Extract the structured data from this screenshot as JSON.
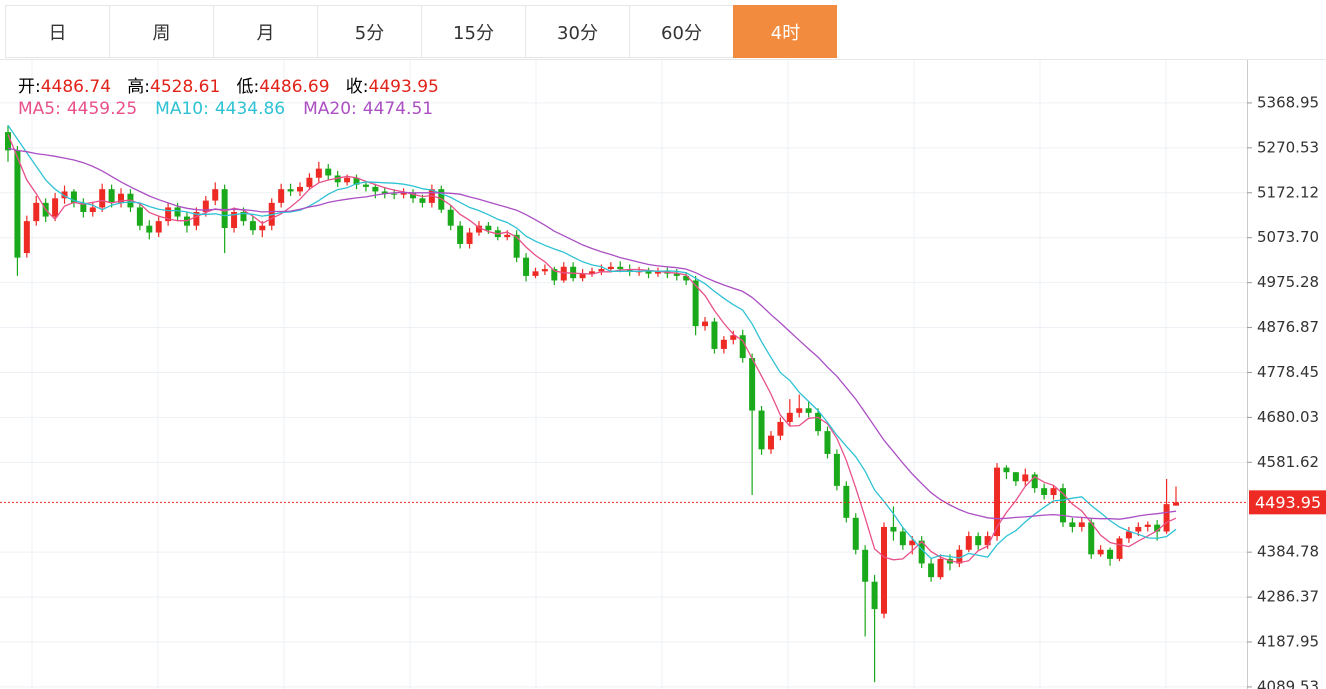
{
  "tabs": [
    "日",
    "周",
    "月",
    "5分",
    "15分",
    "30分",
    "60分",
    "4时"
  ],
  "active_tab": 7,
  "chart_data": {
    "type": "candlestick",
    "ohlc_labels": [
      "开:",
      "高:",
      "低:",
      "收:"
    ],
    "up_color": "#ee2a24",
    "down_color": "#1aa91a",
    "ylim": [
      4085,
      5463
    ],
    "yticks": [
      5368.95,
      5270.53,
      5172.12,
      {
        "value": 5073.7,
        "label": "5073.70"
      },
      4975.28,
      4876.87,
      4778.45,
      4680.03,
      4581.62,
      4384.78,
      4286.37,
      4187.95,
      4089.53
    ],
    "grid": true,
    "open": [
      5305,
      5265,
      5040,
      5110,
      5150,
      5120,
      5160,
      5175,
      5150,
      5130,
      5140,
      5180,
      5150,
      5170,
      5140,
      5100,
      5085,
      5110,
      5140,
      5120,
      5100,
      5130,
      5155,
      5180,
      5095,
      5130,
      5110,
      5090,
      5100,
      5150,
      5180,
      5175,
      5185,
      5205,
      5225,
      5210,
      5195,
      5205,
      5190,
      5185,
      5175,
      5170,
      5168,
      5172,
      5160,
      5150,
      5180,
      5135,
      5100,
      5060,
      5085,
      5100,
      5090,
      5075,
      5080,
      5030,
      4990,
      5000,
      5005,
      4980,
      5010,
      4985,
      4995,
      5000,
      5005,
      5010,
      5005,
      5000,
      5000,
      4995,
      5000,
      4995,
      4990,
      4980,
      4880,
      4890,
      4830,
      4850,
      4860,
      4810,
      4695,
      4610,
      4640,
      4670,
      4690,
      4700,
      4690,
      4650,
      4600,
      4530,
      4460,
      4390,
      4320,
      4250,
      4440,
      4430,
      4400,
      4410,
      4360,
      4330,
      4370,
      4360,
      4390,
      4420,
      4400,
      4420,
      4570,
      4560,
      4540,
      4555,
      4525,
      4510,
      4525,
      4450,
      4440,
      4450,
      4380,
      4390,
      4370,
      4415,
      4430,
      4440,
      4445,
      4430,
      4486.74
    ],
    "high": [
      5320,
      5275,
      5122,
      5165,
      5160,
      5172,
      5188,
      5180,
      5160,
      5152,
      5192,
      5190,
      5182,
      5180,
      5150,
      5112,
      5120,
      5150,
      5150,
      5130,
      5140,
      5165,
      5195,
      5190,
      5140,
      5140,
      5120,
      5110,
      5160,
      5192,
      5192,
      5195,
      5215,
      5240,
      5235,
      5220,
      5212,
      5212,
      5198,
      5192,
      5185,
      5180,
      5182,
      5180,
      5168,
      5190,
      5188,
      5145,
      5110,
      5095,
      5110,
      5108,
      5098,
      5090,
      5090,
      5040,
      5008,
      5015,
      5010,
      5020,
      5020,
      5005,
      5008,
      5015,
      5020,
      5022,
      5015,
      5010,
      5008,
      5008,
      5008,
      5005,
      4998,
      4990,
      4900,
      4898,
      4858,
      4870,
      4872,
      4820,
      4705,
      4650,
      4680,
      4720,
      4730,
      4715,
      4700,
      4660,
      4610,
      4540,
      4470,
      4400,
      4335,
      4450,
      4485,
      4440,
      4420,
      4420,
      4370,
      4380,
      4380,
      4400,
      4430,
      4428,
      4430,
      4580,
      4575,
      4560,
      4568,
      4560,
      4535,
      4532,
      4535,
      4460,
      4460,
      4460,
      4400,
      4395,
      4420,
      4440,
      4450,
      4452,
      4455,
      4545,
      4528.61
    ],
    "low": [
      5240,
      4990,
      5030,
      5100,
      5108,
      5110,
      5148,
      5140,
      5118,
      5120,
      5130,
      5140,
      5140,
      5130,
      5090,
      5070,
      5075,
      5100,
      5110,
      5085,
      5090,
      5120,
      5145,
      5040,
      5085,
      5100,
      5080,
      5075,
      5090,
      5140,
      5165,
      5165,
      5178,
      5195,
      5200,
      5185,
      5188,
      5180,
      5175,
      5160,
      5160,
      5158,
      5160,
      5150,
      5140,
      5140,
      5128,
      5090,
      5050,
      5050,
      5078,
      5082,
      5068,
      5068,
      5020,
      4978,
      4985,
      4992,
      4970,
      4975,
      4978,
      4978,
      4988,
      4992,
      4998,
      4998,
      4990,
      4990,
      4985,
      4988,
      4985,
      4980,
      4970,
      4860,
      4870,
      4820,
      4820,
      4840,
      4800,
      4510,
      4598,
      4600,
      4630,
      4660,
      4680,
      4680,
      4640,
      4590,
      4520,
      4450,
      4380,
      4200,
      4100,
      4240,
      4410,
      4390,
      4380,
      4350,
      4320,
      4325,
      4345,
      4352,
      4385,
      4390,
      4392,
      4410,
      4545,
      4530,
      4530,
      4515,
      4500,
      4500,
      4440,
      4428,
      4430,
      4370,
      4375,
      4355,
      4365,
      4405,
      4420,
      4430,
      4410,
      4425,
      4486.69
    ],
    "close": [
      5265,
      5030,
      5110,
      5150,
      5120,
      5160,
      5175,
      5150,
      5130,
      5140,
      5180,
      5150,
      5170,
      5140,
      5100,
      5085,
      5110,
      5140,
      5120,
      5100,
      5130,
      5155,
      5180,
      5095,
      5130,
      5110,
      5090,
      5100,
      5150,
      5180,
      5175,
      5185,
      5205,
      5225,
      5210,
      5195,
      5205,
      5190,
      5185,
      5175,
      5170,
      5168,
      5172,
      5160,
      5150,
      5180,
      5135,
      5100,
      5060,
      5085,
      5100,
      5090,
      5075,
      5080,
      5030,
      4990,
      5000,
      5005,
      4980,
      5010,
      4985,
      4995,
      5000,
      5005,
      5010,
      5005,
      5000,
      5000,
      4995,
      5000,
      4995,
      4990,
      4980,
      4880,
      4890,
      4830,
      4850,
      4860,
      4810,
      4695,
      4610,
      4640,
      4670,
      4690,
      4700,
      4690,
      4650,
      4600,
      4530,
      4460,
      4390,
      4320,
      4260,
      4440,
      4430,
      4400,
      4410,
      4360,
      4330,
      4370,
      4360,
      4390,
      4420,
      4400,
      4420,
      4570,
      4560,
      4540,
      4555,
      4525,
      4510,
      4525,
      4450,
      4440,
      4450,
      4380,
      4390,
      4370,
      4415,
      4430,
      4440,
      4445,
      4430,
      4490,
      4493.95
    ],
    "lines": [
      {
        "name": "MA5:",
        "color": "#e9508a",
        "values": [
          5300,
          5250,
          5200,
          5170,
          5135,
          5114,
          5143,
          5151,
          5147,
          5151,
          5155,
          5150,
          5154,
          5156,
          5148,
          5129,
          5121,
          5115,
          5111,
          5111,
          5120,
          5129,
          5137,
          5132,
          5138,
          5134,
          5121,
          5105,
          5116,
          5126,
          5141,
          5158,
          5180,
          5194,
          5200,
          5204,
          5208,
          5205,
          5197,
          5190,
          5183,
          5178,
          5174,
          5169,
          5164,
          5166,
          5159,
          5145,
          5125,
          5112,
          5096,
          5087,
          5082,
          5086,
          5075,
          5053,
          5035,
          5021,
          5001,
          4997,
          4996,
          4995,
          4994,
          4999,
          4999,
          5003,
          5004,
          5004,
          5002,
          5000,
          4998,
          4996,
          4992,
          4969,
          4947,
          4914,
          4886,
          4862,
          4848,
          4809,
          4771,
          4731,
          4685,
          4661,
          4662,
          4678,
          4680,
          4666,
          4634,
          4586,
          4526,
          4460,
          4392,
          4374,
          4368,
          4370,
          4388,
          4408,
          4386,
          4374,
          4366,
          4362,
          4366,
          4388,
          4398,
          4440,
          4472,
          4498,
          4529,
          4550,
          4538,
          4531,
          4513,
          4490,
          4475,
          4449,
          4422,
          4406,
          4401,
          4397,
          4409,
          4420,
          4432,
          4450,
          4459.25
        ]
      },
      {
        "name": "MA10:",
        "color": "#2fc2d4",
        "values": [
          5320,
          5290,
          5260,
          5230,
          5200,
          5180,
          5165,
          5155,
          5150,
          5145,
          5135,
          5145,
          5150,
          5152,
          5150,
          5142,
          5136,
          5133,
          5133,
          5130,
          5125,
          5125,
          5126,
          5122,
          5124,
          5127,
          5125,
          5121,
          5124,
          5129,
          5130,
          5134,
          5143,
          5155,
          5169,
          5179,
          5183,
          5192,
          5196,
          5195,
          5194,
          5193,
          5191,
          5187,
          5181,
          5178,
          5170,
          5162,
          5151,
          5140,
          5133,
          5124,
          5114,
          5107,
          5095,
          5077,
          5066,
          5057,
          5049,
          5042,
          5031,
          5021,
          5014,
          5010,
          5000,
          5000,
          5000,
          5000,
          5001,
          5000,
          5001,
          5000,
          4997,
          4985,
          4973,
          4956,
          4941,
          4927,
          4915,
          4885,
          4846,
          4811,
          4778,
          4761,
          4735,
          4715,
          4695,
          4669,
          4641,
          4617,
          4594,
          4562,
          4521,
          4496,
          4469,
          4439,
          4415,
          4391,
          4371,
          4378,
          4375,
          4372,
          4382,
          4378,
          4374,
          4401,
          4420,
          4432,
          4451,
          4468,
          4483,
          4497,
          4499,
          4503,
          4506,
          4487,
          4471,
          4454,
          4440,
          4431,
          4424,
          4416,
          4415,
          4419,
          4434.86
        ]
      },
      {
        "name": "MA20:",
        "color": "#ab4fc3",
        "values": [
          5270,
          5265,
          5262,
          5258,
          5255,
          5252,
          5248,
          5244,
          5238,
          5230,
          5220,
          5208,
          5196,
          5185,
          5175,
          5165,
          5157,
          5150,
          5143,
          5138,
          5135,
          5134,
          5136,
          5135,
          5136,
          5135,
          5133,
          5130,
          5131,
          5131,
          5132,
          5136,
          5141,
          5145,
          5151,
          5155,
          5158,
          5161,
          5163,
          5167,
          5170,
          5172,
          5173,
          5172,
          5172,
          5172,
          5172,
          5171,
          5169,
          5163,
          5158,
          5152,
          5146,
          5140,
          5134,
          5124,
          5113,
          5101,
          5088,
          5078,
          5068,
          5058,
          5050,
          5043,
          5037,
          5030,
          5025,
          5020,
          5015,
          5012,
          5010,
          5008,
          5005,
          4997,
          4987,
          4978,
          4970,
          4963,
          4956,
          4943,
          4925,
          4905,
          4887,
          4868,
          4849,
          4830,
          4812,
          4790,
          4770,
          4745,
          4720,
          4690,
          4660,
          4630,
          4605,
          4580,
          4556,
          4535,
          4515,
          4500,
          4488,
          4478,
          4470,
          4465,
          4460,
          4458,
          4459,
          4461,
          4462,
          4464,
          4466,
          4467,
          4465,
          4462,
          4461,
          4459,
          4458,
          4458,
          4457,
          4460,
          4464,
          4467,
          4469,
          4472,
          4474.51
        ]
      }
    ]
  }
}
